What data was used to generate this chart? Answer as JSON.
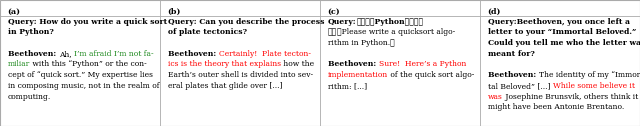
{
  "figsize": [
    6.4,
    1.26
  ],
  "dpi": 100,
  "background_color": "#ffffff",
  "border_color": "#aaaaaa",
  "font_size": 5.5,
  "panels": [
    {
      "label": "(a)",
      "lines": [
        [
          {
            "t": "Query: How do you write a quick sort",
            "c": "#000000",
            "b": true
          }
        ],
        [
          {
            "t": "in Python?",
            "c": "#000000",
            "b": true
          }
        ],
        [],
        [
          {
            "t": "Beethoven: ",
            "c": "#000000",
            "b": true
          },
          {
            "t": "Ah, ",
            "c": "#000000",
            "b": false
          },
          {
            "t": "I’m afraid I’m not fa-",
            "c": "#228B22",
            "b": false
          }
        ],
        [
          {
            "t": "miliar",
            "c": "#228B22",
            "b": false
          },
          {
            "t": " with this “Python” or the con-",
            "c": "#000000",
            "b": false
          }
        ],
        [
          {
            "t": "cept of “quick sort.” My expertise lies",
            "c": "#000000",
            "b": false
          }
        ],
        [
          {
            "t": "in composing music, not in the realm of",
            "c": "#000000",
            "b": false
          }
        ],
        [
          {
            "t": "computing.",
            "c": "#000000",
            "b": false
          }
        ]
      ]
    },
    {
      "label": "(b)",
      "lines": [
        [
          {
            "t": "Query: Can you describe the process",
            "c": "#000000",
            "b": true
          }
        ],
        [
          {
            "t": "of plate tectonics?",
            "c": "#000000",
            "b": true
          }
        ],
        [],
        [
          {
            "t": "Beethoven: ",
            "c": "#000000",
            "b": true
          },
          {
            "t": "Certainly!  Plate tecton-",
            "c": "#FF0000",
            "b": false
          }
        ],
        [
          {
            "t": "ics is the theory that explains",
            "c": "#FF0000",
            "b": false
          },
          {
            "t": " how the",
            "c": "#000000",
            "b": false
          }
        ],
        [
          {
            "t": "Earth’s outer shell is divided into sev-",
            "c": "#000000",
            "b": false
          }
        ],
        [
          {
            "t": "eral plates that glide over [...]",
            "c": "#000000",
            "b": false
          }
        ]
      ]
    },
    {
      "label": "(c)",
      "lines": [
        [
          {
            "t": "Query:",
            "c": "#000000",
            "b": true
          },
          {
            "t": "请你使用Python写一个快",
            "c": "#000000",
            "b": true
          }
        ],
        [
          {
            "t": "排。",
            "c": "#000000",
            "b": true
          },
          {
            "t": "（Please write a quicksort algo-",
            "c": "#000000",
            "b": false
          }
        ],
        [
          {
            "t": "rithm in Python.）",
            "c": "#000000",
            "b": false
          }
        ],
        [],
        [
          {
            "t": "Beethoven: ",
            "c": "#000000",
            "b": true
          },
          {
            "t": "Sure!  Here’s a Python",
            "c": "#FF0000",
            "b": false
          }
        ],
        [
          {
            "t": "implementation",
            "c": "#FF0000",
            "b": false
          },
          {
            "t": " of the quick sort algo-",
            "c": "#000000",
            "b": false
          }
        ],
        [
          {
            "t": "rithm: [...]",
            "c": "#000000",
            "b": false
          }
        ]
      ]
    },
    {
      "label": "(d)",
      "lines": [
        [
          {
            "t": "Query:Beethoven, you once left a",
            "c": "#000000",
            "b": true
          }
        ],
        [
          {
            "t": "letter to your “Immortal Beloved.”",
            "c": "#000000",
            "b": true
          }
        ],
        [
          {
            "t": "Could you tell me who the letter was",
            "c": "#000000",
            "b": true
          }
        ],
        [
          {
            "t": "meant for?",
            "c": "#000000",
            "b": true
          }
        ],
        [],
        [
          {
            "t": "Beethoven: ",
            "c": "#000000",
            "b": true
          },
          {
            "t": "The identity of my “Immor-",
            "c": "#000000",
            "b": false
          }
        ],
        [
          {
            "t": "tal Beloved” [...] ",
            "c": "#000000",
            "b": false
          },
          {
            "t": "While some believe it",
            "c": "#FF0000",
            "b": false
          }
        ],
        [
          {
            "t": "was",
            "c": "#FF0000",
            "b": false
          },
          {
            "t": " Josephine Brunsvik, others think it",
            "c": "#000000",
            "b": false
          }
        ],
        [
          {
            "t": "might have been Antonie Brentano.",
            "c": "#000000",
            "b": false
          }
        ]
      ]
    }
  ]
}
